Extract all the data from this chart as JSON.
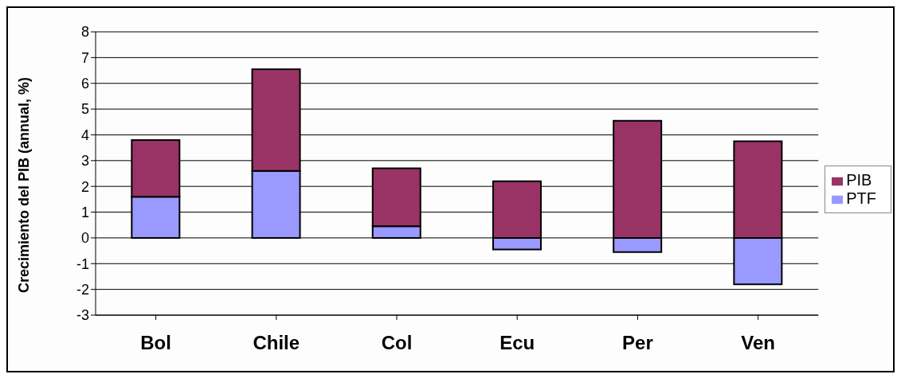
{
  "chart_data": {
    "type": "bar",
    "stacked": true,
    "ylabel": "Crecimiento del PIB (annual, %)",
    "categories": [
      "Bol",
      "Chile",
      "Col",
      "Ecu",
      "Per",
      "Ven"
    ],
    "series": [
      {
        "name": "PTF",
        "color": "#9999ff",
        "values": [
          1.6,
          2.6,
          0.45,
          -0.45,
          -0.55,
          -1.8
        ]
      },
      {
        "name": "PIB",
        "color": "#993366",
        "values": [
          2.2,
          3.95,
          2.25,
          2.2,
          4.55,
          3.75
        ]
      }
    ],
    "ylim": [
      -3,
      8
    ],
    "yticks": [
      -3,
      -2,
      -1,
      0,
      1,
      2,
      3,
      4,
      5,
      6,
      7,
      8
    ],
    "grid": "y",
    "legend": "right"
  }
}
